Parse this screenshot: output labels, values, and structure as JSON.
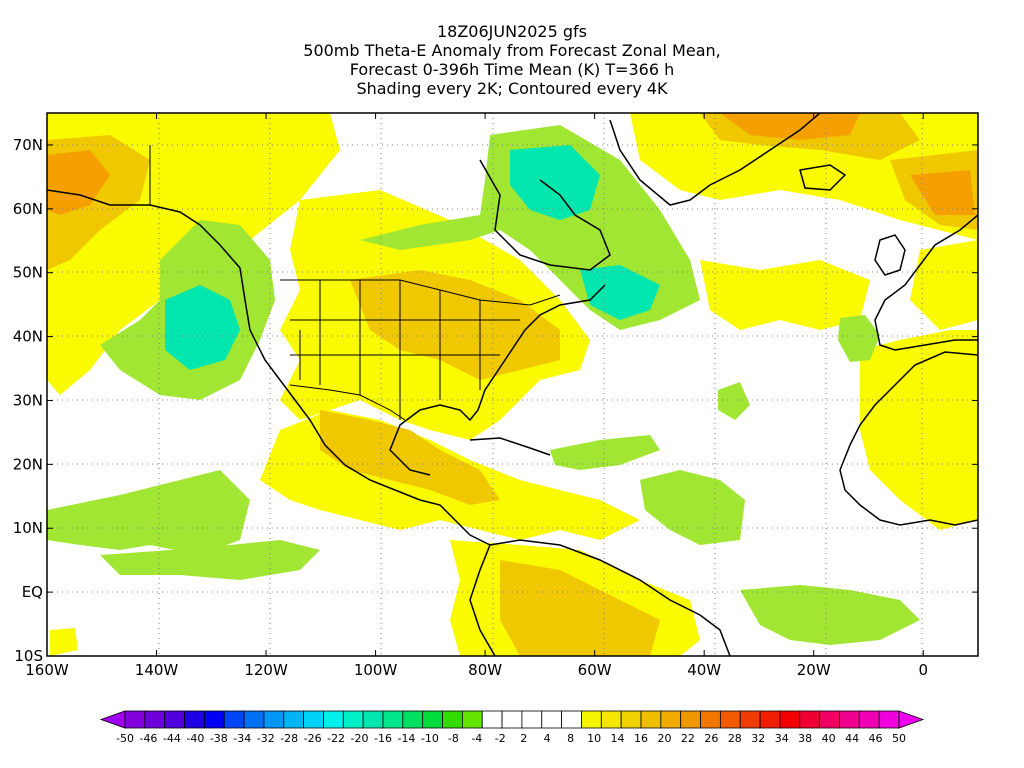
{
  "titles": {
    "line1": "18Z06JUN2025 gfs",
    "line2": "500mb Theta-E Anomaly from Forecast Zonal Mean,",
    "line3": "Forecast 0-396h Time Mean (K) T=366 h",
    "line4": "Shading every 2K; Contoured every 4K"
  },
  "map": {
    "lon_range": [
      -160,
      10
    ],
    "lat_range": [
      -10,
      75
    ],
    "x_ticks": [
      {
        "lon": -160,
        "label": "160W"
      },
      {
        "lon": -140,
        "label": "140W"
      },
      {
        "lon": -120,
        "label": "120W"
      },
      {
        "lon": -100,
        "label": "100W"
      },
      {
        "lon": -80,
        "label": "80W"
      },
      {
        "lon": -60,
        "label": "60W"
      },
      {
        "lon": -40,
        "label": "40W"
      },
      {
        "lon": -20,
        "label": "20W"
      },
      {
        "lon": 0,
        "label": "0"
      }
    ],
    "y_ticks": [
      {
        "lat": 70,
        "label": "70N"
      },
      {
        "lat": 60,
        "label": "60N"
      },
      {
        "lat": 50,
        "label": "50N"
      },
      {
        "lat": 40,
        "label": "40N"
      },
      {
        "lat": 30,
        "label": "30N"
      },
      {
        "lat": 20,
        "label": "20N"
      },
      {
        "lat": 10,
        "label": "10N"
      },
      {
        "lat": 0,
        "label": "EQ"
      },
      {
        "lat": -10,
        "label": "10S"
      }
    ],
    "colors": {
      "light_green": "#a0e632",
      "green": "#00dc00",
      "cyan_green": "#00e6af",
      "yellow": "#fafa00",
      "gold": "#f0c800",
      "orange": "#f5a000",
      "dark_orange": "#f07800"
    }
  },
  "colorbar": {
    "colors": [
      "#a000f0",
      "#8200dc",
      "#6e00dc",
      "#5000dc",
      "#1e00e6",
      "#0000f5",
      "#0046f5",
      "#0070f5",
      "#0096f5",
      "#00b4f5",
      "#00d2f5",
      "#00f0f0",
      "#00f0c8",
      "#00e6af",
      "#00e68c",
      "#00e164",
      "#00dc3c",
      "#32dc00",
      "#64e600",
      "#ffffff",
      "#ffffff",
      "#ffffff",
      "#ffffff",
      "#ffffff",
      "#f5f500",
      "#f5e600",
      "#f0d200",
      "#f0be00",
      "#f0aa00",
      "#f09600",
      "#f07800",
      "#f05a00",
      "#f03c00",
      "#f01e00",
      "#f00000",
      "#f00032",
      "#f00064",
      "#f0008c",
      "#f000b4",
      "#f000dc",
      "#f000f0"
    ],
    "labels": [
      "-50",
      "-46",
      "-44",
      "-40",
      "-38",
      "-34",
      "-32",
      "-28",
      "-26",
      "-22",
      "-20",
      "-16",
      "-14",
      "-10",
      "-8",
      "-4",
      "-2",
      "2",
      "4",
      "8",
      "10",
      "14",
      "16",
      "20",
      "22",
      "26",
      "28",
      "32",
      "34",
      "38",
      "40",
      "44",
      "46",
      "50"
    ]
  }
}
